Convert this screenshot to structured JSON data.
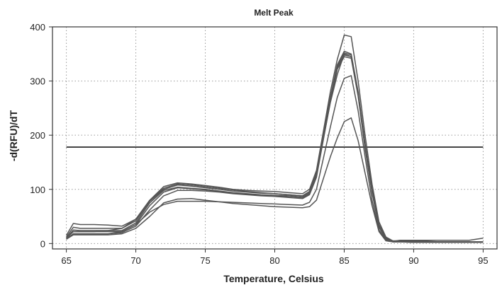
{
  "chart_data": {
    "type": "line",
    "title": "Melt Peak",
    "xlabel": "Temperature, Celsius",
    "ylabel": "-d(RFU)/dT",
    "xlim": [
      64,
      96
    ],
    "ylim": [
      -10,
      400
    ],
    "xticks": [
      65,
      70,
      75,
      80,
      85,
      90,
      95
    ],
    "yticks": [
      0,
      100,
      200,
      300,
      400
    ],
    "grid": "dotted",
    "legend": "none",
    "colors": {
      "series": "#555555",
      "threshold": "#444444",
      "grid": "#9a9a9a",
      "frame": "#333333"
    },
    "threshold": {
      "y": 178,
      "x_start": 65,
      "x_end": 95
    },
    "x": [
      65,
      65.5,
      66,
      67,
      68,
      69,
      70,
      71,
      72,
      73,
      74,
      75,
      76,
      77,
      78,
      79,
      80,
      81,
      82,
      82.5,
      83,
      84,
      84.5,
      85,
      85.5,
      86,
      86.5,
      87,
      87.5,
      88,
      88.5,
      89,
      90,
      91,
      92,
      93,
      94,
      94.5,
      95
    ],
    "series": [
      {
        "values": [
          15,
          37,
          35,
          35,
          34,
          32,
          45,
          80,
          105,
          112,
          110,
          107,
          104,
          100,
          98,
          97,
          96,
          94,
          92,
          100,
          135,
          280,
          340,
          385,
          382,
          300,
          200,
          110,
          40,
          12,
          5,
          5,
          4,
          4,
          3,
          3,
          3,
          2,
          2
        ]
      },
      {
        "values": [
          12,
          30,
          28,
          28,
          28,
          28,
          42,
          78,
          100,
          108,
          106,
          103,
          100,
          97,
          95,
          93,
          92,
          90,
          88,
          96,
          130,
          270,
          330,
          355,
          350,
          280,
          185,
          100,
          35,
          10,
          4,
          4,
          3,
          3,
          3,
          3,
          3,
          3,
          3
        ]
      },
      {
        "values": [
          10,
          25,
          24,
          24,
          24,
          24,
          38,
          75,
          98,
          104,
          102,
          100,
          97,
          94,
          92,
          90,
          89,
          88,
          86,
          94,
          128,
          268,
          328,
          352,
          348,
          278,
          180,
          98,
          33,
          10,
          4,
          4,
          3,
          3,
          3,
          3,
          3,
          3,
          3
        ]
      },
      {
        "values": [
          10,
          22,
          22,
          22,
          22,
          22,
          35,
          70,
          95,
          103,
          101,
          99,
          96,
          93,
          91,
          89,
          88,
          86,
          84,
          92,
          125,
          265,
          325,
          348,
          345,
          275,
          178,
          96,
          32,
          10,
          4,
          4,
          3,
          3,
          3,
          3,
          3,
          3,
          3
        ]
      },
      {
        "values": [
          8,
          18,
          18,
          18,
          18,
          20,
          32,
          62,
          88,
          98,
          98,
          97,
          95,
          92,
          90,
          88,
          87,
          85,
          83,
          90,
          122,
          262,
          322,
          345,
          342,
          272,
          175,
          94,
          30,
          8,
          3,
          3,
          2,
          2,
          2,
          2,
          2,
          2,
          2
        ]
      },
      {
        "values": [
          10,
          22,
          22,
          22,
          24,
          28,
          45,
          80,
          102,
          110,
          108,
          105,
          102,
          99,
          96,
          94,
          92,
          90,
          88,
          96,
          128,
          260,
          312,
          350,
          345,
          275,
          180,
          98,
          33,
          9,
          3,
          3,
          3,
          3,
          3,
          3,
          3,
          2,
          2
        ]
      },
      {
        "values": [
          8,
          18,
          18,
          18,
          18,
          22,
          35,
          58,
          72,
          78,
          78,
          78,
          77,
          76,
          75,
          74,
          73,
          72,
          71,
          76,
          100,
          215,
          270,
          305,
          310,
          245,
          160,
          80,
          25,
          6,
          4,
          6,
          6,
          6,
          6,
          6,
          6,
          8,
          10
        ]
      },
      {
        "values": [
          8,
          16,
          16,
          16,
          16,
          18,
          28,
          50,
          75,
          82,
          83,
          80,
          77,
          74,
          72,
          70,
          68,
          67,
          66,
          68,
          80,
          160,
          195,
          225,
          232,
          190,
          130,
          70,
          22,
          5,
          3,
          3,
          2,
          2,
          2,
          2,
          2,
          2,
          2
        ]
      }
    ]
  }
}
